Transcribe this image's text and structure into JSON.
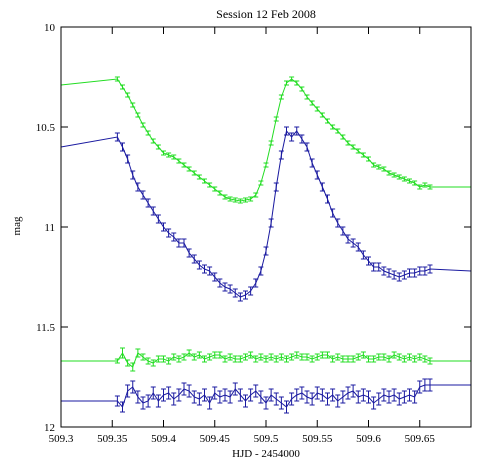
{
  "chart_data": {
    "type": "line",
    "title": "Session 12 Feb 2008",
    "xlabel": "HJD - 2454000",
    "ylabel": "mag",
    "xlim": [
      509.3,
      509.7
    ],
    "ylim": [
      10.0,
      12.0
    ],
    "y_inverted": true,
    "x_ticks": [
      509.3,
      509.35,
      509.4,
      509.45,
      509.5,
      509.55,
      509.6,
      509.65
    ],
    "x_tick_labels": [
      "509.3",
      "509.35",
      "509.4",
      "509.45",
      "509.5",
      "509.55",
      "509.6",
      "509.65"
    ],
    "y_ticks": [
      10,
      10.5,
      11,
      11.5,
      12
    ],
    "y_tick_labels": [
      "10",
      "10.5",
      "11",
      "11.5",
      "12"
    ],
    "grid": false,
    "legend": "none",
    "series": [
      {
        "color": "#22dd22",
        "style": "line-with-errorbars",
        "x": [
          509.3,
          509.355,
          509.36,
          509.365,
          509.37,
          509.375,
          509.38,
          509.385,
          509.39,
          509.395,
          509.4,
          509.405,
          509.41,
          509.415,
          509.42,
          509.425,
          509.43,
          509.435,
          509.44,
          509.445,
          509.45,
          509.455,
          509.46,
          509.465,
          509.47,
          509.475,
          509.48,
          509.485,
          509.49,
          509.495,
          509.5,
          509.505,
          509.51,
          509.515,
          509.52,
          509.525,
          509.53,
          509.535,
          509.54,
          509.545,
          509.55,
          509.555,
          509.56,
          509.565,
          509.57,
          509.575,
          509.58,
          509.585,
          509.59,
          509.595,
          509.6,
          509.605,
          509.61,
          509.615,
          509.62,
          509.625,
          509.63,
          509.635,
          509.64,
          509.645,
          509.65,
          509.655,
          509.66,
          509.7
        ],
        "y": [
          10.29,
          10.26,
          10.3,
          10.34,
          10.39,
          10.44,
          10.49,
          10.53,
          10.57,
          10.6,
          10.63,
          10.64,
          10.65,
          10.67,
          10.69,
          10.71,
          10.73,
          10.75,
          10.77,
          10.79,
          10.81,
          10.83,
          10.85,
          10.86,
          10.865,
          10.87,
          10.865,
          10.86,
          10.84,
          10.78,
          10.69,
          10.58,
          10.46,
          10.35,
          10.28,
          10.26,
          10.28,
          10.31,
          10.35,
          10.38,
          10.41,
          10.44,
          10.47,
          10.5,
          10.52,
          10.55,
          10.58,
          10.6,
          10.62,
          10.64,
          10.66,
          10.69,
          10.7,
          10.71,
          10.73,
          10.74,
          10.75,
          10.76,
          10.77,
          10.78,
          10.8,
          10.79,
          10.8,
          10.8
        ],
        "err": [
          0,
          0.01,
          0.01,
          0.01,
          0.01,
          0.01,
          0.01,
          0.01,
          0.01,
          0.01,
          0.01,
          0.01,
          0.01,
          0.01,
          0.01,
          0.01,
          0.01,
          0.01,
          0.01,
          0.01,
          0.01,
          0.01,
          0.01,
          0.01,
          0.01,
          0.01,
          0.01,
          0.01,
          0.01,
          0.01,
          0.01,
          0.01,
          0.01,
          0.01,
          0.01,
          0.01,
          0.01,
          0.01,
          0.01,
          0.01,
          0.01,
          0.01,
          0.01,
          0.01,
          0.01,
          0.01,
          0.01,
          0.01,
          0.01,
          0.01,
          0.01,
          0.01,
          0.01,
          0.01,
          0.01,
          0.01,
          0.01,
          0.01,
          0.01,
          0.01,
          0.01,
          0.01,
          0.01,
          0
        ]
      },
      {
        "color": "#1a1aa0",
        "style": "line-with-errorbars",
        "x": [
          509.3,
          509.355,
          509.36,
          509.365,
          509.37,
          509.375,
          509.38,
          509.385,
          509.39,
          509.395,
          509.4,
          509.405,
          509.41,
          509.415,
          509.42,
          509.425,
          509.43,
          509.435,
          509.44,
          509.445,
          509.45,
          509.455,
          509.46,
          509.465,
          509.47,
          509.475,
          509.48,
          509.485,
          509.49,
          509.495,
          509.5,
          509.505,
          509.51,
          509.515,
          509.52,
          509.525,
          509.53,
          509.535,
          509.54,
          509.545,
          509.55,
          509.555,
          509.56,
          509.565,
          509.57,
          509.575,
          509.58,
          509.585,
          509.59,
          509.595,
          509.6,
          509.605,
          509.61,
          509.615,
          509.62,
          509.625,
          509.63,
          509.635,
          509.64,
          509.645,
          509.65,
          509.655,
          509.66,
          509.7
        ],
        "y": [
          10.6,
          10.55,
          10.6,
          10.66,
          10.74,
          10.8,
          10.84,
          10.88,
          10.92,
          10.96,
          11.0,
          11.03,
          11.05,
          11.08,
          11.08,
          11.13,
          11.16,
          11.19,
          11.21,
          11.22,
          11.25,
          11.28,
          11.3,
          11.31,
          11.33,
          11.35,
          11.34,
          11.32,
          11.28,
          11.22,
          11.12,
          10.98,
          10.8,
          10.64,
          10.52,
          10.55,
          10.52,
          10.56,
          10.6,
          10.68,
          10.74,
          10.8,
          10.86,
          10.93,
          10.98,
          11.02,
          11.06,
          11.08,
          11.1,
          11.14,
          11.17,
          11.2,
          11.2,
          11.22,
          11.23,
          11.24,
          11.25,
          11.24,
          11.23,
          11.23,
          11.22,
          11.22,
          11.21,
          11.22
        ],
        "err": [
          0,
          0.02,
          0.02,
          0.02,
          0.02,
          0.02,
          0.02,
          0.02,
          0.02,
          0.02,
          0.02,
          0.02,
          0.02,
          0.02,
          0.02,
          0.02,
          0.02,
          0.02,
          0.02,
          0.02,
          0.02,
          0.02,
          0.02,
          0.02,
          0.02,
          0.02,
          0.02,
          0.02,
          0.02,
          0.02,
          0.02,
          0.02,
          0.02,
          0.02,
          0.02,
          0.02,
          0.02,
          0.02,
          0.02,
          0.02,
          0.02,
          0.02,
          0.02,
          0.02,
          0.02,
          0.02,
          0.02,
          0.02,
          0.02,
          0.02,
          0.02,
          0.02,
          0.02,
          0.02,
          0.02,
          0.02,
          0.02,
          0.02,
          0.02,
          0.02,
          0.02,
          0.02,
          0.02,
          0
        ]
      },
      {
        "color": "#22dd22",
        "style": "line-with-errorbars",
        "x": [
          509.3,
          509.355,
          509.36,
          509.365,
          509.37,
          509.375,
          509.38,
          509.385,
          509.39,
          509.395,
          509.4,
          509.405,
          509.41,
          509.415,
          509.42,
          509.425,
          509.43,
          509.435,
          509.44,
          509.445,
          509.45,
          509.455,
          509.46,
          509.465,
          509.47,
          509.475,
          509.48,
          509.485,
          509.49,
          509.495,
          509.5,
          509.505,
          509.51,
          509.515,
          509.52,
          509.525,
          509.53,
          509.535,
          509.54,
          509.545,
          509.55,
          509.555,
          509.56,
          509.565,
          509.57,
          509.575,
          509.58,
          509.585,
          509.59,
          509.595,
          509.6,
          509.605,
          509.61,
          509.615,
          509.62,
          509.625,
          509.63,
          509.635,
          509.64,
          509.645,
          509.65,
          509.655,
          509.66,
          509.7
        ],
        "y": [
          11.67,
          11.67,
          11.63,
          11.68,
          11.7,
          11.63,
          11.65,
          11.67,
          11.68,
          11.66,
          11.66,
          11.67,
          11.65,
          11.66,
          11.65,
          11.63,
          11.65,
          11.64,
          11.66,
          11.65,
          11.64,
          11.64,
          11.66,
          11.65,
          11.66,
          11.66,
          11.65,
          11.64,
          11.66,
          11.65,
          11.66,
          11.65,
          11.66,
          11.65,
          11.66,
          11.65,
          11.64,
          11.65,
          11.65,
          11.66,
          11.65,
          11.64,
          11.64,
          11.66,
          11.65,
          11.66,
          11.66,
          11.66,
          11.65,
          11.64,
          11.66,
          11.66,
          11.65,
          11.65,
          11.66,
          11.64,
          11.65,
          11.66,
          11.65,
          11.66,
          11.65,
          11.66,
          11.67,
          11.67
        ],
        "err": [
          0,
          0.01,
          0.025,
          0.015,
          0.02,
          0.02,
          0.015,
          0.015,
          0.015,
          0.015,
          0.015,
          0.015,
          0.015,
          0.015,
          0.015,
          0.015,
          0.015,
          0.015,
          0.015,
          0.015,
          0.015,
          0.015,
          0.015,
          0.015,
          0.015,
          0.015,
          0.015,
          0.015,
          0.015,
          0.015,
          0.015,
          0.015,
          0.015,
          0.015,
          0.015,
          0.015,
          0.015,
          0.015,
          0.015,
          0.015,
          0.015,
          0.015,
          0.015,
          0.015,
          0.015,
          0.015,
          0.015,
          0.015,
          0.015,
          0.015,
          0.015,
          0.015,
          0.015,
          0.015,
          0.015,
          0.015,
          0.015,
          0.015,
          0.015,
          0.015,
          0.015,
          0.015,
          0.015,
          0
        ]
      },
      {
        "color": "#1a1aa0",
        "style": "line-with-errorbars",
        "x": [
          509.3,
          509.355,
          509.36,
          509.365,
          509.37,
          509.375,
          509.38,
          509.385,
          509.39,
          509.395,
          509.4,
          509.405,
          509.41,
          509.415,
          509.42,
          509.425,
          509.43,
          509.435,
          509.44,
          509.445,
          509.45,
          509.455,
          509.46,
          509.465,
          509.47,
          509.475,
          509.48,
          509.485,
          509.49,
          509.495,
          509.5,
          509.505,
          509.51,
          509.515,
          509.52,
          509.525,
          509.53,
          509.535,
          509.54,
          509.545,
          509.55,
          509.555,
          509.56,
          509.565,
          509.57,
          509.575,
          509.58,
          509.585,
          509.59,
          509.595,
          509.6,
          509.605,
          509.61,
          509.615,
          509.62,
          509.625,
          509.63,
          509.635,
          509.64,
          509.645,
          509.65,
          509.655,
          509.66,
          509.7
        ],
        "y": [
          11.87,
          11.87,
          11.9,
          11.82,
          11.8,
          11.85,
          11.88,
          11.87,
          11.83,
          11.87,
          11.84,
          11.83,
          11.86,
          11.84,
          11.81,
          11.82,
          11.85,
          11.86,
          11.84,
          11.88,
          11.83,
          11.85,
          11.84,
          11.85,
          11.81,
          11.84,
          11.87,
          11.84,
          11.82,
          11.85,
          11.88,
          11.84,
          11.86,
          11.88,
          11.9,
          11.86,
          11.84,
          11.83,
          11.85,
          11.86,
          11.83,
          11.84,
          11.86,
          11.84,
          11.87,
          11.85,
          11.83,
          11.82,
          11.85,
          11.84,
          11.85,
          11.88,
          11.86,
          11.84,
          11.85,
          11.84,
          11.86,
          11.85,
          11.84,
          11.85,
          11.8,
          11.79,
          11.79,
          11.79
        ],
        "err": [
          0,
          0.025,
          0.025,
          0.03,
          0.03,
          0.03,
          0.03,
          0.03,
          0.03,
          0.03,
          0.03,
          0.03,
          0.03,
          0.03,
          0.03,
          0.03,
          0.03,
          0.03,
          0.03,
          0.03,
          0.03,
          0.03,
          0.03,
          0.03,
          0.03,
          0.03,
          0.03,
          0.03,
          0.03,
          0.03,
          0.03,
          0.03,
          0.03,
          0.03,
          0.03,
          0.03,
          0.03,
          0.03,
          0.03,
          0.03,
          0.03,
          0.03,
          0.03,
          0.03,
          0.03,
          0.03,
          0.03,
          0.03,
          0.03,
          0.03,
          0.03,
          0.03,
          0.03,
          0.03,
          0.03,
          0.03,
          0.03,
          0.03,
          0.03,
          0.03,
          0.03,
          0.03,
          0.03,
          0
        ]
      }
    ]
  }
}
